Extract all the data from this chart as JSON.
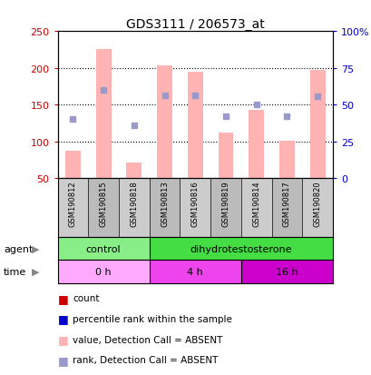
{
  "title": "GDS3111 / 206573_at",
  "samples": [
    "GSM190812",
    "GSM190815",
    "GSM190818",
    "GSM190813",
    "GSM190816",
    "GSM190819",
    "GSM190814",
    "GSM190817",
    "GSM190820"
  ],
  "pink_bar_values": [
    87,
    225,
    72,
    204,
    195,
    112,
    143,
    101,
    197
  ],
  "blue_square_values": [
    131,
    170,
    122,
    163,
    163,
    135,
    150,
    135,
    162
  ],
  "ylim_left": [
    50,
    250
  ],
  "ylim_right": [
    0,
    100
  ],
  "yticks_left": [
    50,
    100,
    150,
    200,
    250
  ],
  "yticks_right": [
    0,
    25,
    50,
    75,
    100
  ],
  "ytick_labels_right": [
    "0",
    "25",
    "50",
    "75",
    "100%"
  ],
  "grid_lines": [
    100,
    150,
    200
  ],
  "bar_color": "#FFB3B3",
  "bar_width": 0.5,
  "blue_color": "#9999CC",
  "left_tick_color": "#CC0000",
  "right_tick_color": "#0000CC",
  "bg_color": "#FFFFFF",
  "plot_bg": "#FFFFFF",
  "sample_bg_even": "#CCCCCC",
  "sample_bg_odd": "#BBBBBB",
  "agent_control_color": "#88EE88",
  "agent_dht_color": "#44DD44",
  "time_0h_color": "#FFAAFF",
  "time_4h_color": "#EE44EE",
  "time_16h_color": "#CC00CC",
  "legend_colors": [
    "#CC0000",
    "#0000CC",
    "#FFB3B3",
    "#9999CC"
  ],
  "legend_labels": [
    "count",
    "percentile rank within the sample",
    "value, Detection Call = ABSENT",
    "rank, Detection Call = ABSENT"
  ]
}
